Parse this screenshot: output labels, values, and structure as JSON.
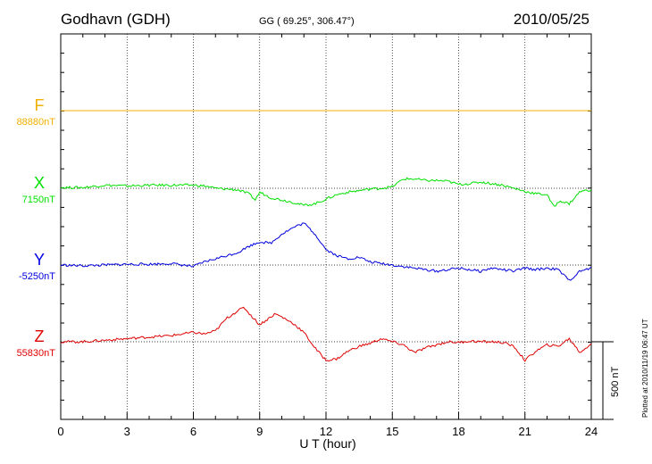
{
  "header": {
    "station": "Godhavn (GDH)",
    "coords": "GG ( 69.25°, 306.47°)",
    "date": "2010/05/25"
  },
  "plotted_note": "Plotted at 2010/11/19 06:47 UT",
  "scale_bar_label": "500 nT",
  "colors": {
    "F": "#f0b000",
    "X": "#00e000",
    "Y": "#0000e0",
    "Z": "#e00000"
  },
  "chart_data": {
    "type": "line",
    "xlabel": "U T (hour)",
    "xlim": [
      0,
      24
    ],
    "x_ticks": [
      "0",
      "3",
      "6",
      "9",
      "12",
      "15",
      "18",
      "21",
      "24"
    ],
    "y_scale_nT": 500,
    "grid": true,
    "series": [
      {
        "name": "F",
        "baseline_label": "88880nT",
        "x": [
          0,
          24
        ],
        "values": [
          0,
          0
        ]
      },
      {
        "name": "X",
        "baseline_label": "7150nT",
        "x": [
          0,
          1,
          2,
          3,
          4,
          5,
          6,
          6.5,
          7,
          7.5,
          8,
          8.5,
          8.8,
          9,
          9.5,
          10,
          10.5,
          11,
          11.5,
          12,
          12.5,
          13,
          13.5,
          14,
          14.5,
          15,
          15.5,
          16,
          16.5,
          17,
          17.5,
          18,
          18.5,
          19,
          19.5,
          20,
          20.5,
          21,
          21.5,
          22,
          22.3,
          22.6,
          23,
          23.5,
          24
        ],
        "values": [
          5,
          5,
          20,
          15,
          20,
          20,
          20,
          15,
          0,
          -5,
          -10,
          -35,
          -75,
          -25,
          -60,
          -75,
          -90,
          -110,
          -100,
          -70,
          -40,
          -25,
          -15,
          -5,
          0,
          10,
          60,
          60,
          50,
          50,
          45,
          25,
          30,
          40,
          30,
          20,
          0,
          -20,
          -35,
          -40,
          -120,
          -80,
          -100,
          -20,
          -10
        ]
      },
      {
        "name": "Y",
        "baseline_label": "-5250nT",
        "x": [
          0,
          1,
          2,
          3,
          4,
          5,
          5.5,
          6,
          6.5,
          7,
          7.5,
          8,
          8.5,
          9,
          9.5,
          10,
          10.5,
          11,
          11.5,
          12,
          12.5,
          13,
          13.5,
          14,
          14.5,
          15,
          15.5,
          16,
          16.5,
          17,
          17.5,
          18,
          18.5,
          19,
          19.5,
          20,
          20.5,
          21,
          21.5,
          22,
          22.5,
          23,
          23.5,
          24
        ],
        "values": [
          0,
          -5,
          0,
          5,
          5,
          10,
          0,
          -10,
          20,
          40,
          60,
          80,
          120,
          150,
          140,
          200,
          240,
          270,
          200,
          100,
          60,
          40,
          50,
          20,
          10,
          0,
          -10,
          -20,
          -30,
          -40,
          -30,
          -20,
          -30,
          -40,
          -20,
          -30,
          -40,
          -20,
          -30,
          -20,
          -30,
          -100,
          -40,
          -20
        ]
      },
      {
        "name": "Z",
        "baseline_label": "55830nT",
        "x": [
          0,
          1,
          2,
          3,
          4,
          5,
          6,
          6.5,
          7,
          7.5,
          8,
          8.3,
          8.6,
          9,
          9.3,
          9.7,
          10,
          10.5,
          11,
          11.5,
          12,
          12.5,
          13,
          13.5,
          14,
          14.5,
          15,
          15.5,
          16,
          16.5,
          17,
          17.5,
          18,
          18.5,
          19,
          19.5,
          20,
          20.5,
          21,
          21.5,
          22,
          22.5,
          23,
          23.5,
          24
        ],
        "values": [
          0,
          0,
          10,
          20,
          30,
          40,
          60,
          50,
          70,
          150,
          200,
          220,
          170,
          110,
          140,
          180,
          160,
          120,
          60,
          -40,
          -120,
          -110,
          -60,
          -30,
          -10,
          20,
          0,
          -20,
          -70,
          -40,
          -20,
          0,
          -5,
          5,
          0,
          0,
          -5,
          -30,
          -120,
          -60,
          -20,
          -30,
          20,
          -70,
          -10
        ]
      }
    ]
  }
}
